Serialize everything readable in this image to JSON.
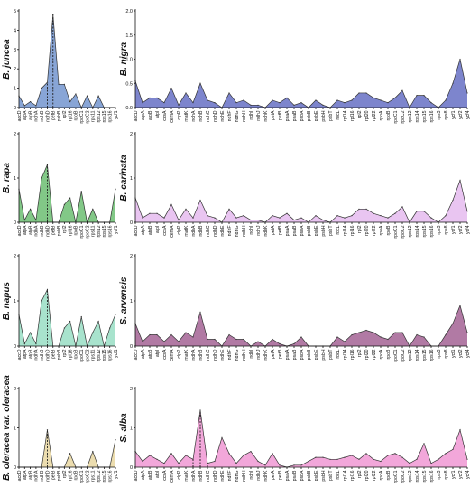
{
  "chart_data": [
    {
      "type": "area",
      "title": "B. juncea",
      "color": "#7b9bd1",
      "ylim": [
        0,
        5
      ],
      "yticks": [
        0,
        1,
        2,
        3,
        4,
        5
      ],
      "categories": [
        "accD",
        "atpA",
        "atpB",
        "ndhA",
        "ndhB",
        "ndhD",
        "petB",
        "psbB",
        "rpl2",
        "rpl16",
        "rpoB",
        "rpoC1",
        "rpoC2",
        "rps11",
        "rps12",
        "rps15",
        "rps16",
        "ycf1"
      ],
      "values": [
        0.6,
        0.1,
        0.3,
        0.1,
        1.0,
        1.3,
        4.8,
        1.2,
        1.2,
        0.3,
        0.7,
        0.0,
        0.6,
        0.0,
        0.6,
        0.0,
        0.0,
        0.0
      ],
      "dashed_categories": [
        "ndhD",
        "petB"
      ]
    },
    {
      "type": "area",
      "title": "B. nigra",
      "color": "#6f78c8",
      "ylim": [
        0,
        2
      ],
      "yticks": [
        0,
        0.5,
        1,
        1.5,
        2
      ],
      "ytick_labels": [
        "0.0",
        "0.5",
        "1.0",
        "1.5",
        "2.0"
      ],
      "categories": [
        "accD",
        "atpA",
        "atpB",
        "atpI",
        "ccsA",
        "cemA",
        "clpP",
        "matK",
        "ndhA",
        "ndhB",
        "ndhC",
        "ndhD",
        "ndhE",
        "ndhF",
        "ndhG",
        "ndhH",
        "ndhI",
        "ndhJ",
        "ndhK",
        "petA",
        "petB",
        "psaA",
        "psaB",
        "psbA",
        "psbB",
        "psbE",
        "psbH",
        "psbT",
        "rbcL",
        "rpl14",
        "rpl16",
        "rpl2",
        "rpl20",
        "rpl22",
        "rpoA",
        "rpoB",
        "rpoC1",
        "rpoC2",
        "rps12",
        "rps14",
        "rps15",
        "rps16",
        "rps3",
        "rps8",
        "ycf1",
        "ycf2",
        "ycf4"
      ],
      "values": [
        0.55,
        0.1,
        0.2,
        0.2,
        0.1,
        0.4,
        0.05,
        0.3,
        0.1,
        0.5,
        0.15,
        0.1,
        0.0,
        0.3,
        0.1,
        0.15,
        0.05,
        0.05,
        0.0,
        0.15,
        0.1,
        0.2,
        0.05,
        0.1,
        0.0,
        0.15,
        0.05,
        0.0,
        0.15,
        0.1,
        0.15,
        0.3,
        0.3,
        0.2,
        0.15,
        0.1,
        0.2,
        0.35,
        0.0,
        0.25,
        0.25,
        0.1,
        0.0,
        0.15,
        0.5,
        1.0,
        0.3
      ],
      "dashed_categories": []
    },
    {
      "type": "area",
      "title": "B. rapa",
      "color": "#74c27a",
      "ylim": [
        0,
        2
      ],
      "yticks": [
        0,
        1,
        2
      ],
      "categories": [
        "accD",
        "atpA",
        "atpB",
        "ndhA",
        "ndhB",
        "ndhD",
        "petB",
        "psbB",
        "rpl2",
        "rpl16",
        "rpoB",
        "rpoC1",
        "rpoC2",
        "rps11",
        "rps12",
        "rps15",
        "rps16",
        "ycf1"
      ],
      "values": [
        0.75,
        0.05,
        0.3,
        0.05,
        1.0,
        1.3,
        0.0,
        0.0,
        0.4,
        0.55,
        0.0,
        0.7,
        0.0,
        0.3,
        0.0,
        0.0,
        0.0,
        0.75
      ],
      "dashed_categories": [
        "ndhD",
        "petB"
      ]
    },
    {
      "type": "area",
      "title": "B. carinata",
      "color": "#e7bff0",
      "ylim": [
        0,
        2
      ],
      "yticks": [
        0,
        1,
        2
      ],
      "categories": [
        "accD",
        "atpA",
        "atpB",
        "atpI",
        "ccsA",
        "cemA",
        "clpP",
        "matK",
        "ndhA",
        "ndhB",
        "ndhC",
        "ndhD",
        "ndhE",
        "ndhF",
        "ndhG",
        "ndhH",
        "ndhI",
        "ndhJ",
        "ndhK",
        "petA",
        "petB",
        "psaA",
        "psaB",
        "psbA",
        "psbB",
        "psbE",
        "psbH",
        "psbT",
        "rbcL",
        "rpl14",
        "rpl16",
        "rpl2",
        "rpl20",
        "rpl22",
        "rpoA",
        "rpoB",
        "rpoC1",
        "rpoC2",
        "rps12",
        "rps14",
        "rps15",
        "rps16",
        "rps3",
        "rps8",
        "ycf1",
        "ycf2",
        "ycf4"
      ],
      "values": [
        0.55,
        0.1,
        0.2,
        0.2,
        0.1,
        0.4,
        0.05,
        0.3,
        0.1,
        0.5,
        0.15,
        0.1,
        0.0,
        0.3,
        0.1,
        0.15,
        0.05,
        0.05,
        0.0,
        0.15,
        0.1,
        0.2,
        0.05,
        0.1,
        0.0,
        0.15,
        0.05,
        0.0,
        0.15,
        0.1,
        0.15,
        0.3,
        0.3,
        0.2,
        0.15,
        0.1,
        0.2,
        0.35,
        0.0,
        0.25,
        0.25,
        0.1,
        0.0,
        0.15,
        0.5,
        0.95,
        0.25
      ],
      "dashed_categories": []
    },
    {
      "type": "area",
      "title": "B. napus",
      "color": "#9ee0c8",
      "ylim": [
        0,
        2
      ],
      "yticks": [
        0,
        1,
        2
      ],
      "categories": [
        "accD",
        "atpA",
        "atpB",
        "ndhA",
        "ndhB",
        "ndhD",
        "petB",
        "psbB",
        "rpl2",
        "rpl16",
        "rpoB",
        "rpoC1",
        "rpoC2",
        "rps11",
        "rps12",
        "rps15",
        "rps16",
        "ycf1"
      ],
      "values": [
        0.7,
        0.05,
        0.3,
        0.05,
        1.0,
        1.25,
        0.0,
        0.0,
        0.4,
        0.55,
        0.0,
        0.65,
        0.0,
        0.3,
        0.55,
        0.0,
        0.4,
        0.7
      ],
      "dashed_categories": [
        "ndhD",
        "petB"
      ]
    },
    {
      "type": "area",
      "title": "S. arvensis",
      "color": "#a86b9a",
      "ylim": [
        0,
        2
      ],
      "yticks": [
        0,
        1,
        2
      ],
      "categories": [
        "accD",
        "atpA",
        "atpB",
        "atpI",
        "ccsA",
        "cemA",
        "clpP",
        "matK",
        "ndhA",
        "ndhB",
        "ndhC",
        "ndhD",
        "ndhE",
        "ndhF",
        "ndhG",
        "ndhH",
        "ndhI",
        "ndhJ",
        "ndhK",
        "petA",
        "petB",
        "psaA",
        "psaB",
        "psbA",
        "psbB",
        "psbE",
        "psbH",
        "psbT",
        "rbcL",
        "rpl14",
        "rpl16",
        "rpl2",
        "rpl20",
        "rpl22",
        "rpoA",
        "rpoB",
        "rpoC1",
        "rpoC2",
        "rps12",
        "rps14",
        "rps15",
        "rps16",
        "rps3",
        "rps8",
        "ycf1",
        "ycf2",
        "ycf4"
      ],
      "values": [
        0.5,
        0.1,
        0.25,
        0.25,
        0.1,
        0.25,
        0.1,
        0.3,
        0.2,
        0.75,
        0.15,
        0.15,
        0.0,
        0.25,
        0.15,
        0.15,
        0.0,
        0.1,
        0.0,
        0.15,
        0.05,
        0.0,
        0.05,
        0.2,
        0.0,
        0.0,
        0.0,
        0.0,
        0.2,
        0.1,
        0.25,
        0.3,
        0.35,
        0.3,
        0.2,
        0.15,
        0.3,
        0.3,
        0.0,
        0.25,
        0.2,
        0.0,
        0.0,
        0.25,
        0.5,
        0.9,
        0.3
      ],
      "dashed_categories": []
    },
    {
      "type": "area",
      "title": "B. oleracea var. oleracea",
      "color": "#ead9a6",
      "ylim": [
        0,
        2
      ],
      "yticks": [
        0,
        1,
        2
      ],
      "categories": [
        "accD",
        "atpA",
        "atpB",
        "ndhA",
        "ndhB",
        "ndhD",
        "petB",
        "psbB",
        "rpl2",
        "rpl16",
        "rpoB",
        "rpoC1",
        "rpoC2",
        "rps11",
        "rps12",
        "rps15",
        "rps16",
        "ycf1"
      ],
      "values": [
        0.0,
        0.0,
        0.0,
        0.0,
        0.0,
        0.95,
        0.0,
        0.0,
        0.0,
        0.35,
        0.0,
        0.0,
        0.0,
        0.4,
        0.0,
        0.0,
        0.0,
        0.7
      ],
      "dashed_categories": [
        "ndhD",
        "petB"
      ]
    },
    {
      "type": "area",
      "title": "S. alba",
      "color": "#f19dd6",
      "ylim": [
        0,
        2
      ],
      "yticks": [
        0,
        1,
        2
      ],
      "categories": [
        "accD",
        "atpA",
        "atpB",
        "atpI",
        "ccsA",
        "cemA",
        "clpP",
        "matK",
        "ndhA",
        "ndhB",
        "ndhC",
        "ndhD",
        "ndhE",
        "ndhF",
        "ndhG",
        "ndhH",
        "ndhI",
        "ndhJ",
        "ndhK",
        "petA",
        "petB",
        "psaA",
        "psaB",
        "psbA",
        "psbB",
        "psbE",
        "psbH",
        "psbT",
        "rbcL",
        "rpl14",
        "rpl16",
        "rpl2",
        "rpl20",
        "rpl22",
        "rpoA",
        "rpoB",
        "rpoC1",
        "rpoC2",
        "rps12",
        "rps14",
        "rps15",
        "rps16",
        "rps3",
        "rps8",
        "ycf1",
        "ycf2",
        "ycf4"
      ],
      "values": [
        0.4,
        0.15,
        0.3,
        0.2,
        0.1,
        0.35,
        0.1,
        0.3,
        0.2,
        1.45,
        0.1,
        0.15,
        0.75,
        0.35,
        0.1,
        0.3,
        0.4,
        0.15,
        0.05,
        0.35,
        0.05,
        0.0,
        0.05,
        0.05,
        0.15,
        0.25,
        0.25,
        0.2,
        0.2,
        0.25,
        0.3,
        0.2,
        0.35,
        0.2,
        0.15,
        0.3,
        0.35,
        0.25,
        0.1,
        0.2,
        0.6,
        0.1,
        0.2,
        0.35,
        0.45,
        0.95,
        0.2
      ],
      "dashed_categories": [
        "ndhA",
        "ndhB",
        "ndhC"
      ]
    }
  ]
}
